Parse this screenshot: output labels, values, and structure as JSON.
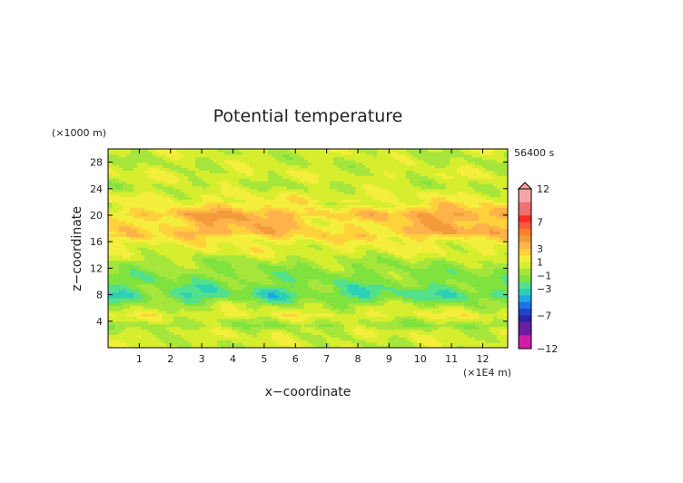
{
  "chart_data": {
    "type": "heatmap",
    "title": "Potential temperature",
    "xlabel": "x−coordinate",
    "ylabel": "z−coordinate",
    "x_unit": "(×1E4 m)",
    "y_unit": "(×1000 m)",
    "time_label": "56400 s",
    "xlim": [
      0,
      12.8
    ],
    "ylim": [
      0,
      30
    ],
    "x_ticks": [
      "1",
      "2",
      "3",
      "4",
      "5",
      "6",
      "7",
      "8",
      "9",
      "10",
      "11",
      "12"
    ],
    "x_tick_values": [
      1,
      2,
      3,
      4,
      5,
      6,
      7,
      8,
      9,
      10,
      11,
      12
    ],
    "y_ticks": [
      "4",
      "8",
      "12",
      "16",
      "20",
      "24",
      "28"
    ],
    "y_tick_values": [
      4,
      8,
      12,
      16,
      20,
      24,
      28
    ],
    "colorbar": {
      "labels": [
        "12",
        "7",
        "3",
        "1",
        "−1",
        "−3",
        "−7",
        "−12"
      ],
      "label_values": [
        12,
        7,
        3,
        1,
        -1,
        -3,
        -7,
        -12
      ],
      "levels": [
        12,
        10,
        8,
        7,
        6,
        5,
        4,
        3,
        2,
        1,
        0,
        -1,
        -2,
        -3,
        -4,
        -5,
        -6,
        -7,
        -8,
        -10,
        -12
      ],
      "colors": [
        "#f4a6a6",
        "#ef7070",
        "#ff2a2a",
        "#ff5a3c",
        "#ff7f2a",
        "#f39a3a",
        "#ffb24a",
        "#ffd23c",
        "#f4ee3c",
        "#d6ee2e",
        "#a6e63c",
        "#7fe23e",
        "#52e08c",
        "#2ccfb8",
        "#1ea6e6",
        "#1f72e6",
        "#2244cc",
        "#2a24a6",
        "#6a1ea6",
        "#d01ea6",
        "#ff2ed0"
      ],
      "extend_max": true
    },
    "z_profile": [
      {
        "z": 0.5,
        "v": 0.3
      },
      {
        "z": 2.5,
        "v": 0.5
      },
      {
        "z": 3.5,
        "v": -0.8
      },
      {
        "z": 5.0,
        "v": 1.1
      },
      {
        "z": 6.5,
        "v": -0.3
      },
      {
        "z": 8.0,
        "v": -2.6
      },
      {
        "z": 9.5,
        "v": -1.6
      },
      {
        "z": 11.0,
        "v": -1.2
      },
      {
        "z": 13.0,
        "v": -0.5
      },
      {
        "z": 14.5,
        "v": 0.8
      },
      {
        "z": 16.0,
        "v": 1.3
      },
      {
        "z": 17.5,
        "v": 2.9
      },
      {
        "z": 19.0,
        "v": 2.6
      },
      {
        "z": 20.2,
        "v": 3.3
      },
      {
        "z": 21.5,
        "v": 1.4
      },
      {
        "z": 23.0,
        "v": 1.0
      },
      {
        "z": 24.5,
        "v": 0.0
      },
      {
        "z": 26.0,
        "v": 0.7
      },
      {
        "z": 28.0,
        "v": 0.1
      },
      {
        "z": 30.0,
        "v": 0.4
      }
    ]
  }
}
